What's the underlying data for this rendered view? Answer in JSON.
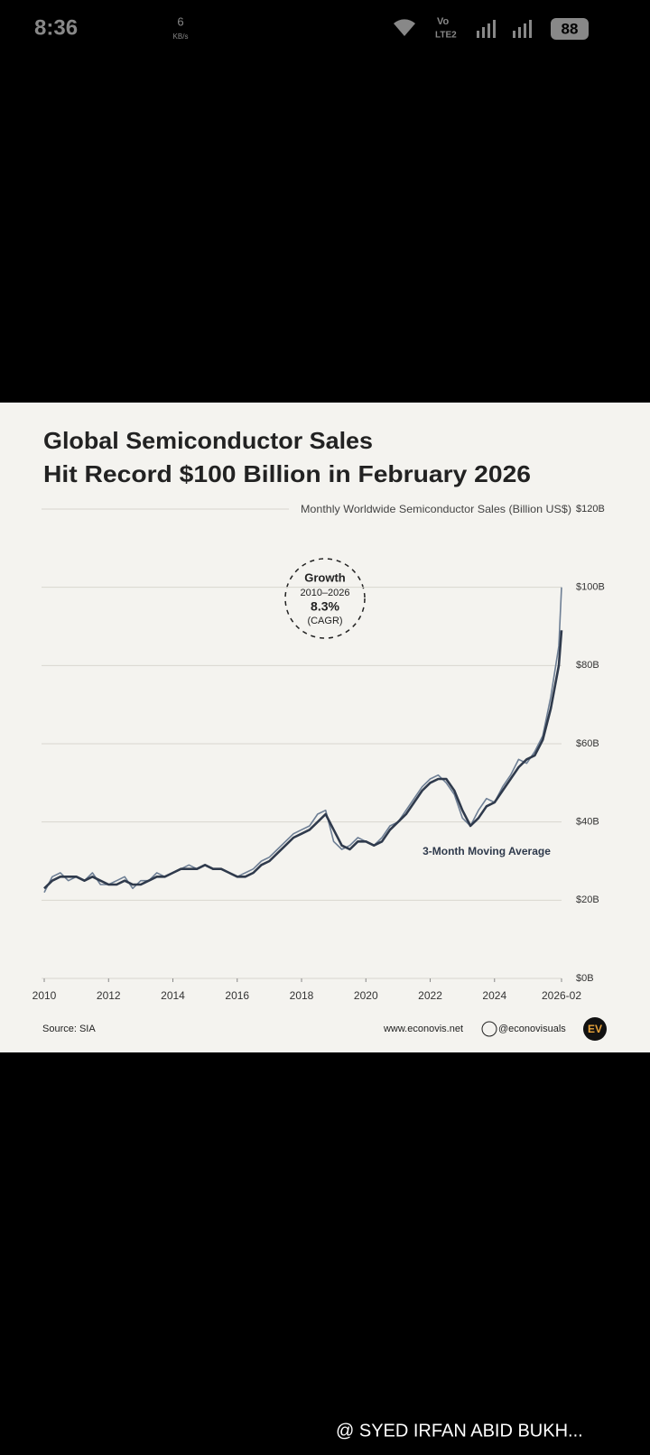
{
  "status_bar": {
    "time": "8:36",
    "speed": "6",
    "speed_unit": "KB/s",
    "volte": "Vo",
    "network": "LTE2",
    "battery": "88"
  },
  "chart_data": {
    "type": "line",
    "title": "Global Semiconductor Sales",
    "title_line2": "Hit Record $100 Billion in February 2026",
    "subtitle": "Monthly Worldwide Semiconductor Sales (Billion US$)",
    "x": [
      2010,
      2010.25,
      2010.5,
      2010.75,
      2011,
      2011.25,
      2011.5,
      2011.75,
      2012,
      2012.25,
      2012.5,
      2012.75,
      2013,
      2013.25,
      2013.5,
      2013.75,
      2014,
      2014.25,
      2014.5,
      2014.75,
      2015,
      2015.25,
      2015.5,
      2015.75,
      2016,
      2016.25,
      2016.5,
      2016.75,
      2017,
      2017.25,
      2017.5,
      2017.75,
      2018,
      2018.25,
      2018.5,
      2018.75,
      2019,
      2019.25,
      2019.5,
      2019.75,
      2020,
      2020.25,
      2020.5,
      2020.75,
      2021,
      2021.25,
      2021.5,
      2021.75,
      2022,
      2022.25,
      2022.5,
      2022.75,
      2023,
      2023.25,
      2023.5,
      2023.75,
      2024,
      2024.25,
      2024.5,
      2024.75,
      2025,
      2025.25,
      2025.5,
      2025.75,
      2026,
      2026.083
    ],
    "series": [
      {
        "color": "#6e7f95",
        "values": [
          22,
          26,
          27,
          25,
          26,
          25,
          27,
          24,
          24,
          25,
          26,
          23,
          25,
          25,
          27,
          26,
          27,
          28,
          29,
          28,
          29,
          28,
          28,
          27,
          26,
          27,
          28,
          30,
          31,
          33,
          35,
          37,
          38,
          39,
          42,
          43,
          35,
          33,
          34,
          36,
          35,
          34,
          36,
          39,
          40,
          43,
          46,
          49,
          51,
          52,
          50,
          47,
          41,
          39,
          43,
          46,
          45,
          49,
          52,
          56,
          55,
          58,
          62,
          72,
          85,
          100
        ]
      },
      {
        "name": "3-Month Moving Average",
        "color": "#2f3a4c",
        "values": [
          23,
          25,
          26,
          26,
          26,
          25,
          26,
          25,
          24,
          24,
          25,
          24,
          24,
          25,
          26,
          26,
          27,
          28,
          28,
          28,
          29,
          28,
          28,
          27,
          26,
          26,
          27,
          29,
          30,
          32,
          34,
          36,
          37,
          38,
          40,
          42,
          38,
          34,
          33,
          35,
          35,
          34,
          35,
          38,
          40,
          42,
          45,
          48,
          50,
          51,
          51,
          48,
          43,
          39,
          41,
          44,
          45,
          48,
          51,
          54,
          56,
          57,
          61,
          69,
          80,
          89
        ]
      }
    ],
    "xlim": [
      2010,
      2026.083
    ],
    "xticks": [
      2010,
      2012,
      2014,
      2016,
      2018,
      2020,
      2022,
      2024,
      {
        "value": 2026.083,
        "label": "2026-02"
      }
    ],
    "ylim": [
      0,
      120
    ],
    "yticks": [
      {
        "value": 0,
        "label": "$0B"
      },
      {
        "value": 20,
        "label": "$20B"
      },
      {
        "value": 40,
        "label": "$40B"
      },
      {
        "value": 60,
        "label": "$60B"
      },
      {
        "value": 80,
        "label": "$80B"
      },
      {
        "value": 100,
        "label": "$100B"
      },
      {
        "value": 120,
        "label": "$120B"
      }
    ],
    "grid": true,
    "annotations": {
      "growth": "Growth",
      "period": "2010–2026",
      "cagr_value": "8.3%",
      "cagr": "(CAGR)"
    },
    "source": "Source: SIA",
    "website": "www.econovis.net",
    "handle": "@econovisuals",
    "logo": "EV"
  },
  "watermark": "@ SYED IRFAN ABID BUKH..."
}
